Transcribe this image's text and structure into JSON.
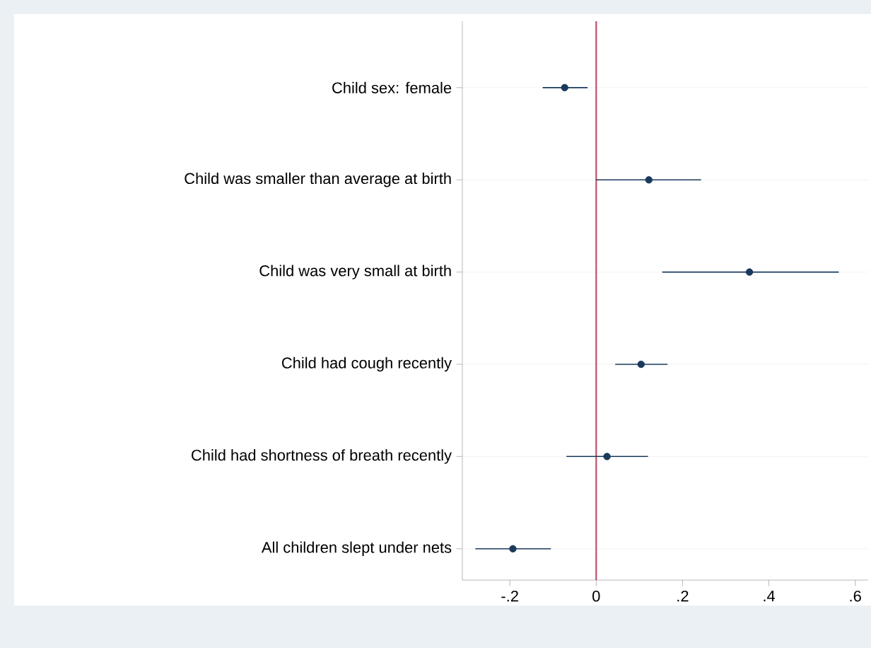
{
  "chart_data": {
    "type": "scatter",
    "orientation": "horizontal",
    "categories": [
      "Child sex: female",
      "Child was smaller than average at birth",
      "Child was very small at birth",
      "Child had cough recently",
      "Child had shortness of breath recently",
      "All children slept under nets"
    ],
    "values": [
      -0.073,
      0.122,
      0.355,
      0.104,
      0.025,
      -0.193
    ],
    "errors": [
      [
        -0.124,
        -0.02
      ],
      [
        0.0,
        0.243
      ],
      [
        0.153,
        0.562
      ],
      [
        0.044,
        0.165
      ],
      [
        -0.069,
        0.12
      ],
      [
        -0.28,
        -0.105
      ]
    ],
    "color": "#1a3a5c",
    "marker": "circle",
    "xlim": [
      -0.31,
      0.63
    ],
    "xticks": [
      {
        "value": -0.2,
        "label": "-.2"
      },
      0,
      {
        "value": 0.2,
        "label": ".2"
      },
      {
        "value": 0.4,
        "label": ".4"
      },
      {
        "value": 0.6,
        "label": ".6"
      }
    ],
    "ref_lines": [
      {
        "axis": "x",
        "value": 0,
        "color": "#c0506a"
      }
    ],
    "grid": "y"
  }
}
